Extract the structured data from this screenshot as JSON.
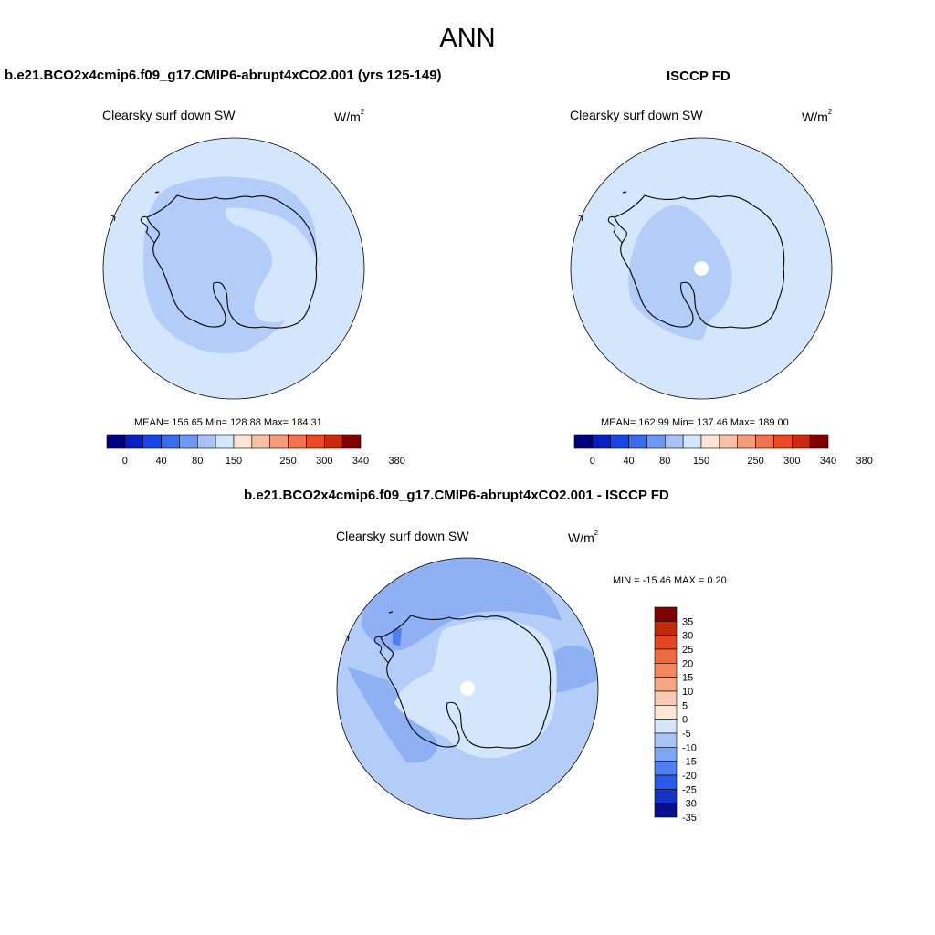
{
  "figure_title": "ANN",
  "panels": [
    {
      "title": "b.e21.BCO2x4cmip6.f09_g17.CMIP6-abrupt4xCO2.001 (yrs 125-149)",
      "left_label": "Clearsky surf down SW",
      "units_base": "W/m",
      "units_sup": "2",
      "stats_text": "MEAN= 156.65  Min= 128.88  Max= 184.31",
      "mean": 156.65,
      "min": 128.88,
      "max": 184.31
    },
    {
      "title": "ISCCP FD",
      "left_label": "Clearsky surf down SW",
      "units_base": "W/m",
      "units_sup": "2",
      "stats_text": "MEAN= 162.99  Min= 137.46  Max= 189.00",
      "mean": 162.99,
      "min": 137.46,
      "max": 189.0
    },
    {
      "title": "b.e21.BCO2x4cmip6.f09_g17.CMIP6-abrupt4xCO2.001 - ISCCP FD",
      "left_label": "Clearsky surf down SW",
      "units_base": "W/m",
      "units_sup": "2",
      "stats_text": "MIN = -15.46 MAX =   0.20",
      "min": -15.46,
      "max": 0.2
    }
  ],
  "colorbar_abs": {
    "tick_labels": [
      "0",
      "40",
      "80",
      "150",
      "250",
      "300",
      "340",
      "380"
    ],
    "colors": [
      "#00007f",
      "#0a1fc0",
      "#1747e6",
      "#3a6cf0",
      "#6f98f3",
      "#a9c3f7",
      "#d4e6fb",
      "#fde5d6",
      "#f8c0a6",
      "#f59c7c",
      "#f2744f",
      "#ea4a24",
      "#cc2a0f",
      "#7f0000"
    ]
  },
  "colorbar_diff": {
    "tick_labels": [
      "35",
      "30",
      "25",
      "20",
      "15",
      "10",
      "5",
      "0",
      "-5",
      "-10",
      "-15",
      "-20",
      "-25",
      "-30",
      "-35"
    ],
    "colors": [
      "#7f0000",
      "#c32a0c",
      "#e6461f",
      "#f06a40",
      "#f2865c",
      "#f5a683",
      "#f9c9b1",
      "#fde6d8",
      "#d4e6fb",
      "#a9c3f7",
      "#7da6f3",
      "#4f7ff0",
      "#2a5ae8",
      "#1234c8",
      "#06108f"
    ]
  },
  "map_colors": {
    "abs_outer": "#d4e6fb",
    "abs_inner": "#b4cdf8",
    "abs_hole": "#ffffff",
    "diff_bg": "#b4cdf8",
    "diff_mid": "#8fb1f4",
    "diff_light": "#d4e6fb",
    "diff_dark": "#4f7ff0",
    "coast": "#000000"
  }
}
